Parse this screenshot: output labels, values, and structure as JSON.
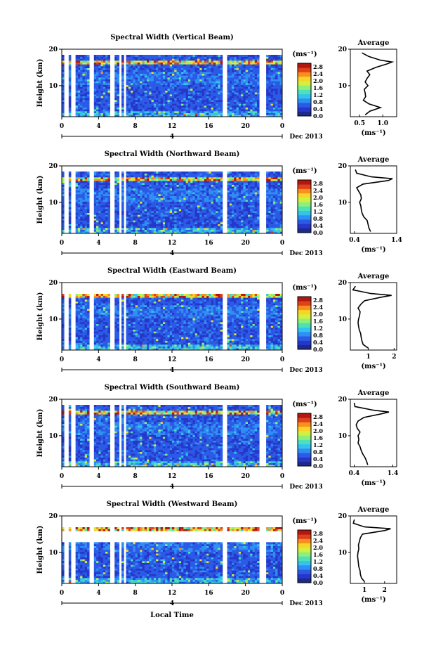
{
  "colors": {
    "colormap": [
      "#1c2a8a",
      "#2636c8",
      "#2a5ae6",
      "#2f8ff2",
      "#33c4ee",
      "#4fe0b8",
      "#8ef07a",
      "#d2f040",
      "#f8d428",
      "#f88f1e",
      "#e0401a",
      "#b01812"
    ],
    "background": "#ffffff",
    "gap_color": "#ffffff"
  },
  "figure": {
    "date_label": "Dec 2013",
    "x_title": "Local Time",
    "day_marker": "4"
  },
  "chart_data": [
    {
      "type": "heatmap",
      "title": "Spectral Width (Vertical Beam)",
      "ylabel": "Height (km)",
      "xlabel": "Local Time",
      "xlim": [
        0,
        24
      ],
      "ylim": [
        1.5,
        20
      ],
      "x_ticks": [
        "0",
        "4",
        "8",
        "12",
        "16",
        "20",
        "0"
      ],
      "y_ticks": [
        "10",
        "20"
      ],
      "colorbar": {
        "unit": "(ms⁻¹)",
        "ticks": [
          "0.0",
          "0.4",
          "0.8",
          "1.2",
          "1.6",
          "2.0",
          "2.4",
          "2.8"
        ],
        "range": [
          0,
          3.0
        ]
      },
      "data_gaps_hours": [
        [
          0.3,
          0.8
        ],
        [
          1.1,
          1.6
        ],
        [
          3.1,
          3.5
        ],
        [
          5.2,
          5.7
        ],
        [
          6.2,
          6.5
        ],
        [
          6.8,
          7.1
        ],
        [
          17.6,
          18.0
        ],
        [
          21.5,
          22.3
        ]
      ],
      "top_height_km": 18.5,
      "enhanced_layer_km": 16.5,
      "profile": {
        "title": "Average",
        "xlabel": "(ms⁻¹)",
        "xlim": [
          0.3,
          1.3
        ],
        "x_ticks": [
          "0.5",
          "1.0"
        ],
        "y_ticks": [
          "10",
          "20"
        ],
        "height_km": [
          2,
          3,
          4,
          5,
          6,
          7,
          8,
          9,
          10,
          11,
          12,
          13,
          14,
          15,
          16,
          16.5,
          17,
          18,
          19
        ],
        "width": [
          0.62,
          0.72,
          0.95,
          0.7,
          0.58,
          0.63,
          0.62,
          0.6,
          0.68,
          0.62,
          0.66,
          0.72,
          0.66,
          0.85,
          1.1,
          1.2,
          0.95,
          0.7,
          0.55
        ]
      }
    },
    {
      "type": "heatmap",
      "title": "Spectral Width (Northward Beam)",
      "ylabel": "Height (km)",
      "xlabel": "Local Time",
      "xlim": [
        0,
        24
      ],
      "ylim": [
        1.5,
        20
      ],
      "x_ticks": [
        "0",
        "4",
        "8",
        "12",
        "16",
        "20",
        "0"
      ],
      "y_ticks": [
        "10",
        "20"
      ],
      "colorbar": {
        "unit": "(ms⁻¹)",
        "ticks": [
          "0.0",
          "0.4",
          "0.8",
          "1.2",
          "1.6",
          "2.0",
          "2.4",
          "2.8"
        ],
        "range": [
          0,
          3.0
        ]
      },
      "data_gaps_hours": [
        [
          0.3,
          0.8
        ],
        [
          1.1,
          1.6
        ],
        [
          3.1,
          3.5
        ],
        [
          5.2,
          5.7
        ],
        [
          6.2,
          6.5
        ],
        [
          6.8,
          7.1
        ],
        [
          17.6,
          18.0
        ],
        [
          21.5,
          22.3
        ]
      ],
      "top_height_km": 18.5,
      "enhanced_layer_km": 16.5,
      "profile": {
        "title": "Average",
        "xlabel": "(ms⁻¹)",
        "xlim": [
          0.3,
          1.4
        ],
        "x_ticks": [
          "0.4",
          "1.4"
        ],
        "y_ticks": [
          "10",
          "20"
        ],
        "height_km": [
          2,
          3,
          4,
          5,
          6,
          7,
          8,
          9,
          10,
          11,
          12,
          13,
          14,
          15,
          16,
          16.5,
          17,
          18,
          19
        ],
        "width": [
          0.78,
          0.74,
          0.72,
          0.7,
          0.62,
          0.58,
          0.56,
          0.55,
          0.52,
          0.56,
          0.55,
          0.5,
          0.45,
          0.6,
          1.2,
          1.3,
          0.8,
          0.45,
          0.42
        ]
      }
    },
    {
      "type": "heatmap",
      "title": "Spectral Width (Eastward Beam)",
      "ylabel": "Height (km)",
      "xlabel": "Local Time",
      "xlim": [
        0,
        24
      ],
      "ylim": [
        1.5,
        20
      ],
      "x_ticks": [
        "0",
        "4",
        "8",
        "12",
        "16",
        "20",
        "0"
      ],
      "y_ticks": [
        "10",
        "20"
      ],
      "colorbar": {
        "unit": "(ms⁻¹)",
        "ticks": [
          "0.0",
          "0.4",
          "0.8",
          "1.2",
          "1.6",
          "2.0",
          "2.4",
          "2.8"
        ],
        "range": [
          0,
          3.0
        ]
      },
      "data_gaps_hours": [
        [
          0.3,
          0.8
        ],
        [
          1.1,
          1.6
        ],
        [
          3.1,
          3.5
        ],
        [
          5.2,
          5.7
        ],
        [
          6.2,
          6.5
        ],
        [
          6.8,
          7.1
        ],
        [
          17.6,
          18.0
        ],
        [
          21.5,
          22.3
        ]
      ],
      "top_height_km": 17.0,
      "enhanced_layer_km": 16.5,
      "profile": {
        "title": "Average",
        "xlabel": "(ms⁻¹)",
        "xlim": [
          0.3,
          2.1
        ],
        "x_ticks": [
          "1",
          "2"
        ],
        "y_ticks": [
          "10",
          "20"
        ],
        "height_km": [
          2,
          3,
          4,
          5,
          6,
          7,
          8,
          9,
          10,
          11,
          12,
          13,
          14,
          15,
          16,
          16.5,
          17,
          18,
          19
        ],
        "width": [
          1.0,
          0.8,
          0.75,
          0.72,
          0.7,
          0.65,
          0.62,
          0.6,
          0.62,
          0.66,
          0.68,
          0.6,
          0.7,
          0.85,
          1.5,
          1.9,
          1.1,
          0.4,
          0.5
        ]
      }
    },
    {
      "type": "heatmap",
      "title": "Spectral Width (Southward Beam)",
      "ylabel": "Height (km)",
      "xlabel": "Local Time",
      "xlim": [
        0,
        24
      ],
      "ylim": [
        1.5,
        20
      ],
      "x_ticks": [
        "0",
        "4",
        "8",
        "12",
        "16",
        "20",
        "0"
      ],
      "y_ticks": [
        "10",
        "20"
      ],
      "colorbar": {
        "unit": "(ms⁻¹)",
        "ticks": [
          "0.0",
          "0.4",
          "0.8",
          "1.2",
          "1.6",
          "2.0",
          "2.4",
          "2.8"
        ],
        "range": [
          0,
          3.0
        ]
      },
      "data_gaps_hours": [
        [
          0.3,
          0.8
        ],
        [
          1.1,
          1.6
        ],
        [
          3.1,
          3.5
        ],
        [
          5.2,
          5.7
        ],
        [
          6.2,
          6.5
        ],
        [
          6.8,
          7.1
        ],
        [
          17.6,
          18.0
        ],
        [
          21.5,
          22.3
        ]
      ],
      "top_height_km": 18.5,
      "enhanced_layer_km": 16.5,
      "profile": {
        "title": "Average",
        "xlabel": "(ms⁻¹)",
        "xlim": [
          0.3,
          1.5
        ],
        "x_ticks": [
          "0.4",
          "1.4"
        ],
        "y_ticks": [
          "10",
          "20"
        ],
        "height_km": [
          2,
          3,
          4,
          5,
          6,
          7,
          8,
          9,
          10,
          11,
          12,
          13,
          14,
          15,
          16,
          16.5,
          17,
          18,
          19
        ],
        "width": [
          0.75,
          0.72,
          0.68,
          0.62,
          0.58,
          0.55,
          0.5,
          0.52,
          0.5,
          0.55,
          0.48,
          0.45,
          0.5,
          0.65,
          1.1,
          1.3,
          0.9,
          0.42,
          0.4
        ]
      }
    },
    {
      "type": "heatmap",
      "title": "Spectral Width (Westward Beam)",
      "ylabel": "Height (km)",
      "xlabel": "Local Time",
      "xlim": [
        0,
        24
      ],
      "ylim": [
        1.5,
        20
      ],
      "x_ticks": [
        "0",
        "4",
        "8",
        "12",
        "16",
        "20",
        "0"
      ],
      "y_ticks": [
        "10",
        "20"
      ],
      "colorbar": {
        "unit": "(ms⁻¹)",
        "ticks": [
          "0.0",
          "0.4",
          "0.8",
          "1.2",
          "1.6",
          "2.0",
          "2.4",
          "2.8"
        ],
        "range": [
          0,
          3.0
        ]
      },
      "data_gaps_hours": [
        [
          0.3,
          0.8
        ],
        [
          1.1,
          1.6
        ],
        [
          3.1,
          3.5
        ],
        [
          5.2,
          5.7
        ],
        [
          6.2,
          6.5
        ],
        [
          6.8,
          7.1
        ],
        [
          17.6,
          18.0
        ],
        [
          21.5,
          22.3
        ]
      ],
      "top_height_km": 13.0,
      "enhanced_layer_km": 16.5,
      "profile": {
        "title": "Average",
        "xlabel": "(ms⁻¹)",
        "xlim": [
          0.3,
          2.6
        ],
        "x_ticks": [
          "1",
          "2"
        ],
        "y_ticks": [
          "10",
          "20"
        ],
        "height_km": [
          2,
          3,
          4,
          5,
          6,
          7,
          8,
          9,
          10,
          11,
          12,
          13,
          14,
          15,
          16,
          16.5,
          17,
          18,
          19
        ],
        "width": [
          1.0,
          0.85,
          0.8,
          0.78,
          0.72,
          0.7,
          0.68,
          0.66,
          0.68,
          0.72,
          0.7,
          0.75,
          0.8,
          0.9,
          2.0,
          2.3,
          1.0,
          0.45,
          0.5
        ]
      }
    }
  ]
}
